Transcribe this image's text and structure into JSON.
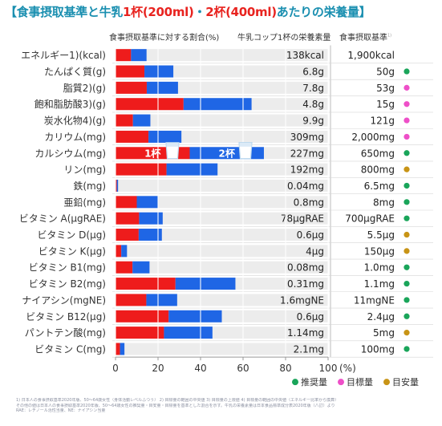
{
  "title": {
    "prefix": "【食事摂取基準と牛乳",
    "cup1": "1杯(200ml)",
    "middle": "・",
    "cup2": "2杯(400ml)",
    "suffix": "あたりの栄養量】"
  },
  "headers": {
    "ratio": "食事摂取基準に対する割合(%)",
    "milk": "牛乳コップ1杯の栄養素量",
    "standard": "食事摂取基準",
    "standard_note": "1)"
  },
  "colors": {
    "cup1": "#ee1c1c",
    "cup2": "#1f66e5",
    "background_bar": "#ececec",
    "title": "#1a8fb0",
    "recommended": "#1aa55a",
    "target": "#ee4fc8",
    "adequate": "#c89416"
  },
  "chart_data": {
    "type": "bar",
    "orientation": "horizontal",
    "stacked": true,
    "xlim": [
      0,
      100
    ],
    "x_ticks": [
      "0",
      "20",
      "40",
      "60",
      "80",
      "100"
    ],
    "x_unit": "(%)",
    "grid": true,
    "bar_labels": [
      "1杯",
      "2杯"
    ],
    "categories": [
      "エネルギー1)(kcal)",
      "たんぱく質(g)",
      "脂質2)(g)",
      "飽和脂肪酸3)(g)",
      "炭水化物4)(g)",
      "カリウム(mg)",
      "カルシウム(mg)",
      "リン(mg)",
      "鉄(mg)",
      "亜鉛(mg)",
      "ビタミン A(µgRAE)",
      "ビタミン D(µg)",
      "ビタミン K(µg)",
      "ビタミン B1(mg)",
      "ビタミン B2(mg)",
      "ナイアシン(mgNE)",
      "ビタミン B12(µg)",
      "パントテン酸(mg)",
      "ビタミン C(mg)"
    ],
    "series": [
      {
        "name": "1杯",
        "values": [
          7.3,
          13.6,
          14.7,
          32.0,
          8.2,
          15.5,
          34.9,
          24.0,
          0.6,
          10.0,
          11.1,
          10.9,
          2.7,
          8.0,
          28.2,
          14.5,
          25.0,
          22.8,
          2.1
        ]
      },
      {
        "name": "2杯",
        "values": [
          7.3,
          13.6,
          14.7,
          32.0,
          8.2,
          15.5,
          34.9,
          24.0,
          0.6,
          10.0,
          11.1,
          10.9,
          2.7,
          8.0,
          28.2,
          14.5,
          25.0,
          22.8,
          2.1
        ]
      }
    ],
    "milk_amounts": [
      "138kcal",
      "6.8g",
      "7.8g",
      "4.8g",
      "9.9g",
      "309mg",
      "227mg",
      "192mg",
      "0.04mg",
      "0.8mg",
      "78µgRAE",
      "0.6µg",
      "4µg",
      "0.08mg",
      "0.31mg",
      "1.6mgNE",
      "0.6µg",
      "1.14mg",
      "2.1mg"
    ],
    "standards": [
      "1,900kcal",
      "50g",
      "53g",
      "15g",
      "121g",
      "2,000mg",
      "650mg",
      "800mg",
      "6.5mg",
      "8mg",
      "700µgRAE",
      "5.5µg",
      "150µg",
      "1.0mg",
      "1.1mg",
      "11mgNE",
      "2.4µg",
      "5mg",
      "100mg"
    ],
    "standard_types": [
      "none",
      "recommended",
      "target",
      "target",
      "target",
      "target",
      "recommended",
      "adequate",
      "recommended",
      "recommended",
      "recommended",
      "adequate",
      "adequate",
      "recommended",
      "recommended",
      "recommended",
      "recommended",
      "adequate",
      "recommended"
    ],
    "legend": [
      {
        "type": "recommended",
        "label": "推奨量"
      },
      {
        "type": "target",
        "label": "目標量"
      },
      {
        "type": "adequate",
        "label": "目安量"
      }
    ],
    "legend_position": "bottom-right"
  },
  "footnotes": [
    "1) 日本人の食事摂取基準2020年版、50〜64歳女性（身体活動レベルふつう）  2) 目標量の範囲の中央値  3) 目標量の上限値  4) 目標量の範囲の中央値（エネルギー比率から換算）",
    "その他の値は日本人の食事摂取基準2020年版、50〜64歳女性の推奨量・目安量・目標量を基準とした割合を示す。牛乳の栄養素量は日本食品標準成分表2020年版（八訂）より",
    "RAE：レチノール活性当量、NE：ナイアシン当量"
  ]
}
